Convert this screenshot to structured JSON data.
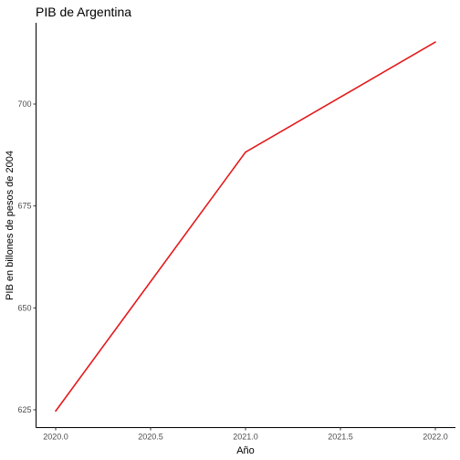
{
  "chart_data": {
    "type": "line",
    "title": "PIB de Argentina",
    "xlabel": "Año",
    "ylabel": "PIB en billones de pesos de 2004",
    "x": [
      2020.0,
      2021.0,
      2022.0
    ],
    "series": [
      {
        "values": [
          624.7,
          688.2,
          715.2
        ],
        "color": "#e41a1c"
      }
    ],
    "xlim": [
      2020.0,
      2022.0
    ],
    "ylim": [
      625,
      700
    ],
    "x_ticks": [
      2020.0,
      2020.5,
      2021.0,
      2021.5,
      2022.0
    ],
    "x_tick_labels": [
      "2020.0",
      "2020.5",
      "2021.0",
      "2021.5",
      "2022.0"
    ],
    "y_ticks": [
      625,
      650,
      675,
      700
    ],
    "y_tick_labels": [
      "625",
      "650",
      "675",
      "700"
    ],
    "grid": false,
    "legend": "none",
    "colors": {
      "line": "#e41a1c",
      "axis": "#000000",
      "tick_text": "#4d4d4d",
      "background": "#ffffff"
    }
  }
}
